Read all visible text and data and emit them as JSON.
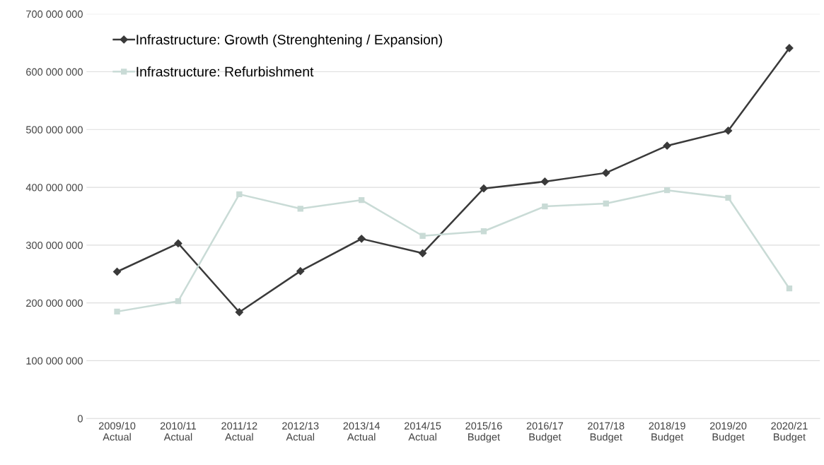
{
  "chart_data": {
    "type": "line",
    "categories": [
      "2009/10\nActual",
      "2010/11\nActual",
      "2011/12\nActual",
      "2012/13\nActual",
      "2013/14\nActual",
      "2014/15\nActual",
      "2015/16\nBudget",
      "2016/17\nBudget",
      "2017/18\nBudget",
      "2018/19\nBudget",
      "2019/20\nBudget",
      "2020/21\nBudget"
    ],
    "series": [
      {
        "name": "Infrastructure: Growth (Strenghtening / Expansion)",
        "color": "#3a3a3a",
        "marker": "diamond",
        "values": [
          254000000,
          303000000,
          184000000,
          255000000,
          311000000,
          286000000,
          398000000,
          410000000,
          425000000,
          472000000,
          498000000,
          641000000
        ]
      },
      {
        "name": "Infrastructure: Refurbishment",
        "color": "#c9dbd6",
        "marker": "square",
        "values": [
          185000000,
          203000000,
          388000000,
          363000000,
          378000000,
          316000000,
          324000000,
          367000000,
          372000000,
          395000000,
          382000000,
          225000000
        ]
      }
    ],
    "ylim": [
      0,
      700000000
    ],
    "yticks": [
      {
        "value": 0,
        "label": "0"
      },
      {
        "value": 100000000,
        "label": "100 000 000"
      },
      {
        "value": 200000000,
        "label": "200 000 000"
      },
      {
        "value": 300000000,
        "label": "300 000 000"
      },
      {
        "value": 400000000,
        "label": "400 000 000"
      },
      {
        "value": 500000000,
        "label": "500 000 000"
      },
      {
        "value": 600000000,
        "label": "600 000 000"
      },
      {
        "value": 700000000,
        "label": "700 000 000"
      }
    ],
    "grid": "y",
    "legend": "top left",
    "line_style": "solid"
  }
}
